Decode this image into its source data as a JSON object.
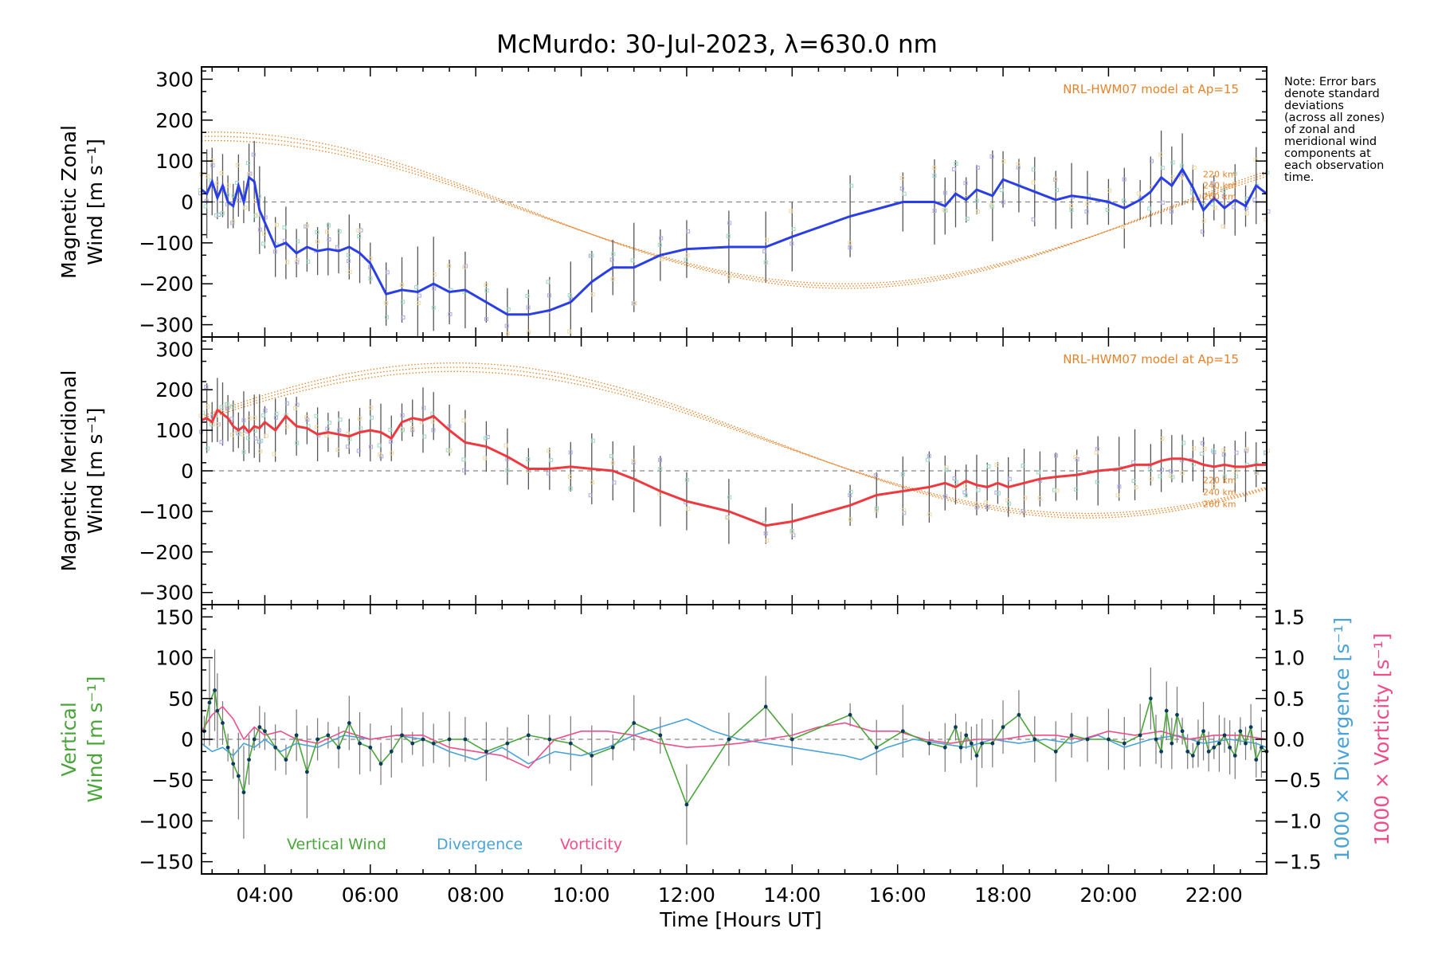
{
  "colors": {
    "zonal": "#2a3ee8",
    "meridional": "#f0383f",
    "vertical": "#4aa63a",
    "divergence": "#4aa3d8",
    "vorticity": "#f04d8a",
    "model": "#e8822a",
    "errorbar": "#555555",
    "zero_line": "#888888"
  },
  "figure": {
    "title": "McMurdo: 30-Jul-2023, λ=630.0 nm",
    "note_lines": [
      "Note: Error bars",
      "denote standard",
      "deviations",
      "(across all zones)",
      "of zonal and",
      "meridional wind",
      "components at",
      "each observation",
      "time."
    ],
    "x_label": "Time [Hours UT]",
    "x_ticks": [
      "04:00",
      "06:00",
      "08:00",
      "10:00",
      "12:00",
      "14:00",
      "16:00",
      "18:00",
      "20:00",
      "22:00"
    ]
  },
  "chart_data": [
    {
      "type": "line",
      "panel": "zonal",
      "ylabel": [
        "Magnetic Zonal",
        "Wind [m s⁻¹]"
      ],
      "ylim": [
        -330,
        330
      ],
      "xlim": [
        2.8,
        23.0
      ],
      "y_ticks": [
        300,
        200,
        100,
        0,
        -100,
        -200,
        -300
      ],
      "model_label": "NRL-HWM07 model at Ap=15",
      "model_altitudes": [
        "220 km",
        "240 km",
        "260 km"
      ],
      "series": [
        {
          "name": "Magnetic Zonal Wind",
          "x": [
            2.8,
            2.9,
            3.0,
            3.1,
            3.2,
            3.3,
            3.4,
            3.5,
            3.6,
            3.7,
            3.8,
            3.9,
            4.0,
            4.2,
            4.4,
            4.6,
            4.8,
            5.0,
            5.2,
            5.4,
            5.6,
            5.8,
            6.0,
            6.3,
            6.6,
            6.9,
            7.2,
            7.5,
            7.8,
            8.2,
            8.6,
            9.0,
            9.4,
            9.8,
            10.2,
            10.6,
            11.0,
            11.5,
            12.0,
            12.8,
            13.5,
            14.0,
            15.1,
            16.1,
            16.7,
            16.9,
            17.1,
            17.3,
            17.5,
            17.8,
            18.0,
            18.3,
            18.6,
            19.0,
            19.3,
            19.6,
            20.0,
            20.3,
            20.6,
            20.8,
            21.0,
            21.2,
            21.4,
            21.6,
            21.8,
            22.0,
            22.2,
            22.4,
            22.6,
            22.8,
            23.0
          ],
          "values": [
            30,
            20,
            50,
            10,
            40,
            0,
            -10,
            40,
            0,
            60,
            50,
            -20,
            -50,
            -110,
            -100,
            -125,
            -110,
            -120,
            -115,
            -120,
            -110,
            -125,
            -150,
            -225,
            -215,
            -220,
            -200,
            -220,
            -215,
            -245,
            -275,
            -275,
            -265,
            -245,
            -195,
            -160,
            -160,
            -130,
            -115,
            -110,
            -110,
            -85,
            -35,
            0,
            0,
            -10,
            20,
            5,
            30,
            15,
            55,
            40,
            25,
            5,
            15,
            10,
            0,
            -15,
            5,
            25,
            60,
            40,
            80,
            35,
            -20,
            10,
            -15,
            5,
            -10,
            40,
            20
          ]
        }
      ]
    },
    {
      "type": "line",
      "panel": "meridional",
      "ylabel": [
        "Magnetic Meridional",
        "Wind [m s⁻¹]"
      ],
      "ylim": [
        -330,
        330
      ],
      "xlim": [
        2.8,
        23.0
      ],
      "y_ticks": [
        300,
        200,
        100,
        0,
        -100,
        -200,
        -300
      ],
      "model_label": "NRL-HWM07 model at Ap=15",
      "model_altitudes": [
        "220 km",
        "240 km",
        "260 km"
      ],
      "series": [
        {
          "name": "Magnetic Meridional Wind",
          "x": [
            2.8,
            2.9,
            3.0,
            3.1,
            3.2,
            3.3,
            3.4,
            3.5,
            3.6,
            3.7,
            3.8,
            3.9,
            4.0,
            4.2,
            4.4,
            4.6,
            4.8,
            5.0,
            5.2,
            5.4,
            5.6,
            5.8,
            6.0,
            6.2,
            6.4,
            6.6,
            6.8,
            7.0,
            7.2,
            7.5,
            7.8,
            8.2,
            8.6,
            9.0,
            9.4,
            9.8,
            10.2,
            10.6,
            11.0,
            11.5,
            12.0,
            12.8,
            13.5,
            14.0,
            15.1,
            15.6,
            16.1,
            16.6,
            16.9,
            17.1,
            17.3,
            17.5,
            17.7,
            17.9,
            18.1,
            18.4,
            18.7,
            19.0,
            19.4,
            19.8,
            20.2,
            20.5,
            20.8,
            21.0,
            21.2,
            21.4,
            21.6,
            21.8,
            22.0,
            22.2,
            22.4,
            22.6,
            22.8,
            23.0
          ],
          "values": [
            125,
            130,
            120,
            150,
            140,
            130,
            110,
            100,
            110,
            95,
            110,
            105,
            120,
            100,
            135,
            110,
            105,
            90,
            95,
            90,
            85,
            95,
            100,
            95,
            80,
            120,
            130,
            125,
            135,
            100,
            70,
            60,
            35,
            5,
            5,
            10,
            5,
            0,
            -20,
            -50,
            -75,
            -100,
            -135,
            -125,
            -85,
            -60,
            -50,
            -40,
            -30,
            -40,
            -25,
            -35,
            -40,
            -30,
            -40,
            -30,
            -20,
            -15,
            -10,
            0,
            5,
            15,
            15,
            25,
            30,
            30,
            25,
            15,
            10,
            15,
            10,
            10,
            15,
            15
          ]
        }
      ]
    },
    {
      "type": "line",
      "panel": "vertical",
      "ylabel": [
        "Vertical",
        "Wind [m s⁻¹]"
      ],
      "y2label_divergence": "1000 × Divergence [s⁻¹]",
      "y2label_vorticity": "1000 × Vorticity [s⁻¹]",
      "ylim": [
        -165,
        165
      ],
      "y2lim": [
        -1.65,
        1.65
      ],
      "xlim": [
        2.8,
        23.0
      ],
      "y_ticks": [
        150,
        100,
        50,
        0,
        -50,
        -100,
        -150
      ],
      "y2_ticks": [
        "1.5",
        "1.0",
        "0.5",
        "0.0",
        "−0.5",
        "−1.0",
        "−1.5"
      ],
      "legend": [
        "Vertical Wind",
        "Divergence",
        "Vorticity"
      ],
      "series": [
        {
          "name": "Vertical Wind",
          "x": [
            2.85,
            2.95,
            3.05,
            3.1,
            3.2,
            3.3,
            3.4,
            3.5,
            3.6,
            3.7,
            3.8,
            3.9,
            4.0,
            4.2,
            4.4,
            4.6,
            4.8,
            5.0,
            5.2,
            5.4,
            5.6,
            5.8,
            6.0,
            6.2,
            6.4,
            6.6,
            6.8,
            7.0,
            7.2,
            7.5,
            7.8,
            8.2,
            8.6,
            9.0,
            9.4,
            9.8,
            10.2,
            10.6,
            11.0,
            11.5,
            12.0,
            12.8,
            13.5,
            14.0,
            15.1,
            15.6,
            16.1,
            16.6,
            16.9,
            17.1,
            17.2,
            17.3,
            17.4,
            17.5,
            17.6,
            17.8,
            18.0,
            18.3,
            18.6,
            19.0,
            19.3,
            19.6,
            20.0,
            20.3,
            20.6,
            20.8,
            20.9,
            21.0,
            21.1,
            21.2,
            21.3,
            21.4,
            21.5,
            21.6,
            21.7,
            21.8,
            21.9,
            22.0,
            22.1,
            22.2,
            22.3,
            22.4,
            22.5,
            22.6,
            22.7,
            22.8,
            22.9,
            23.0
          ],
          "values": [
            10,
            45,
            60,
            35,
            20,
            -10,
            -30,
            -45,
            -65,
            -25,
            0,
            15,
            10,
            -10,
            -25,
            5,
            -40,
            0,
            5,
            -10,
            20,
            -5,
            -10,
            -30,
            -15,
            5,
            -5,
            0,
            -5,
            0,
            0,
            -15,
            -5,
            5,
            0,
            -5,
            -20,
            -10,
            20,
            5,
            -80,
            0,
            40,
            0,
            30,
            -10,
            10,
            -5,
            -10,
            15,
            -10,
            5,
            -5,
            -20,
            -5,
            -5,
            15,
            30,
            0,
            -15,
            5,
            0,
            0,
            -5,
            5,
            50,
            0,
            -15,
            35,
            -5,
            30,
            10,
            -15,
            -20,
            -5,
            10,
            -15,
            -10,
            -5,
            5,
            -10,
            -20,
            10,
            -5,
            15,
            -25,
            -10,
            -15
          ]
        },
        {
          "name": "Divergence",
          "x": [
            2.8,
            3.0,
            3.2,
            3.4,
            3.6,
            3.8,
            4.0,
            4.3,
            4.6,
            5.0,
            5.5,
            6.0,
            6.5,
            7.0,
            7.5,
            8.0,
            8.5,
            9.0,
            9.5,
            10.0,
            10.5,
            11.0,
            11.5,
            12.0,
            12.5,
            13.0,
            13.5,
            14.0,
            14.5,
            15.0,
            15.3,
            15.8,
            16.3,
            16.8,
            17.3,
            17.8,
            18.3,
            18.8,
            19.3,
            19.8,
            20.3,
            20.8,
            21.3,
            21.8,
            22.3,
            22.8,
            23.0
          ],
          "values": [
            -0.05,
            -0.15,
            -0.1,
            -0.2,
            -0.05,
            -0.1,
            0.0,
            -0.15,
            -0.05,
            -0.1,
            0.05,
            0.0,
            0.05,
            0.0,
            -0.15,
            -0.25,
            -0.1,
            -0.3,
            -0.15,
            -0.2,
            -0.1,
            0.05,
            0.15,
            0.25,
            0.1,
            0.0,
            -0.05,
            -0.1,
            -0.15,
            -0.2,
            -0.25,
            -0.1,
            0.0,
            -0.05,
            -0.1,
            0.0,
            -0.05,
            0.0,
            -0.05,
            0.05,
            -0.1,
            0.0,
            0.05,
            -0.05,
            0.0,
            -0.05,
            -0.1
          ]
        },
        {
          "name": "Vorticity",
          "x": [
            2.8,
            3.0,
            3.2,
            3.4,
            3.6,
            3.8,
            4.0,
            4.3,
            4.6,
            5.0,
            5.5,
            6.0,
            6.5,
            7.0,
            7.5,
            8.0,
            8.5,
            9.0,
            9.5,
            10.0,
            10.5,
            11.0,
            11.5,
            12.0,
            12.5,
            13.0,
            13.5,
            14.0,
            14.5,
            15.0,
            15.5,
            16.0,
            16.5,
            17.0,
            17.5,
            18.0,
            18.5,
            19.0,
            19.5,
            20.0,
            20.5,
            21.0,
            21.5,
            22.0,
            22.5,
            23.0
          ],
          "values": [
            0.1,
            0.3,
            0.4,
            0.25,
            0.0,
            0.15,
            0.05,
            0.1,
            0.0,
            -0.05,
            0.1,
            0.0,
            0.05,
            0.05,
            -0.1,
            -0.15,
            -0.2,
            -0.35,
            0.0,
            0.1,
            0.1,
            0.05,
            -0.05,
            -0.1,
            -0.08,
            -0.05,
            0.0,
            0.05,
            0.15,
            0.2,
            0.1,
            0.1,
            0.0,
            -0.05,
            0.0,
            0.0,
            0.05,
            0.05,
            0.0,
            0.1,
            0.05,
            0.1,
            0.0,
            0.05,
            0.05,
            0.0
          ]
        }
      ]
    }
  ]
}
